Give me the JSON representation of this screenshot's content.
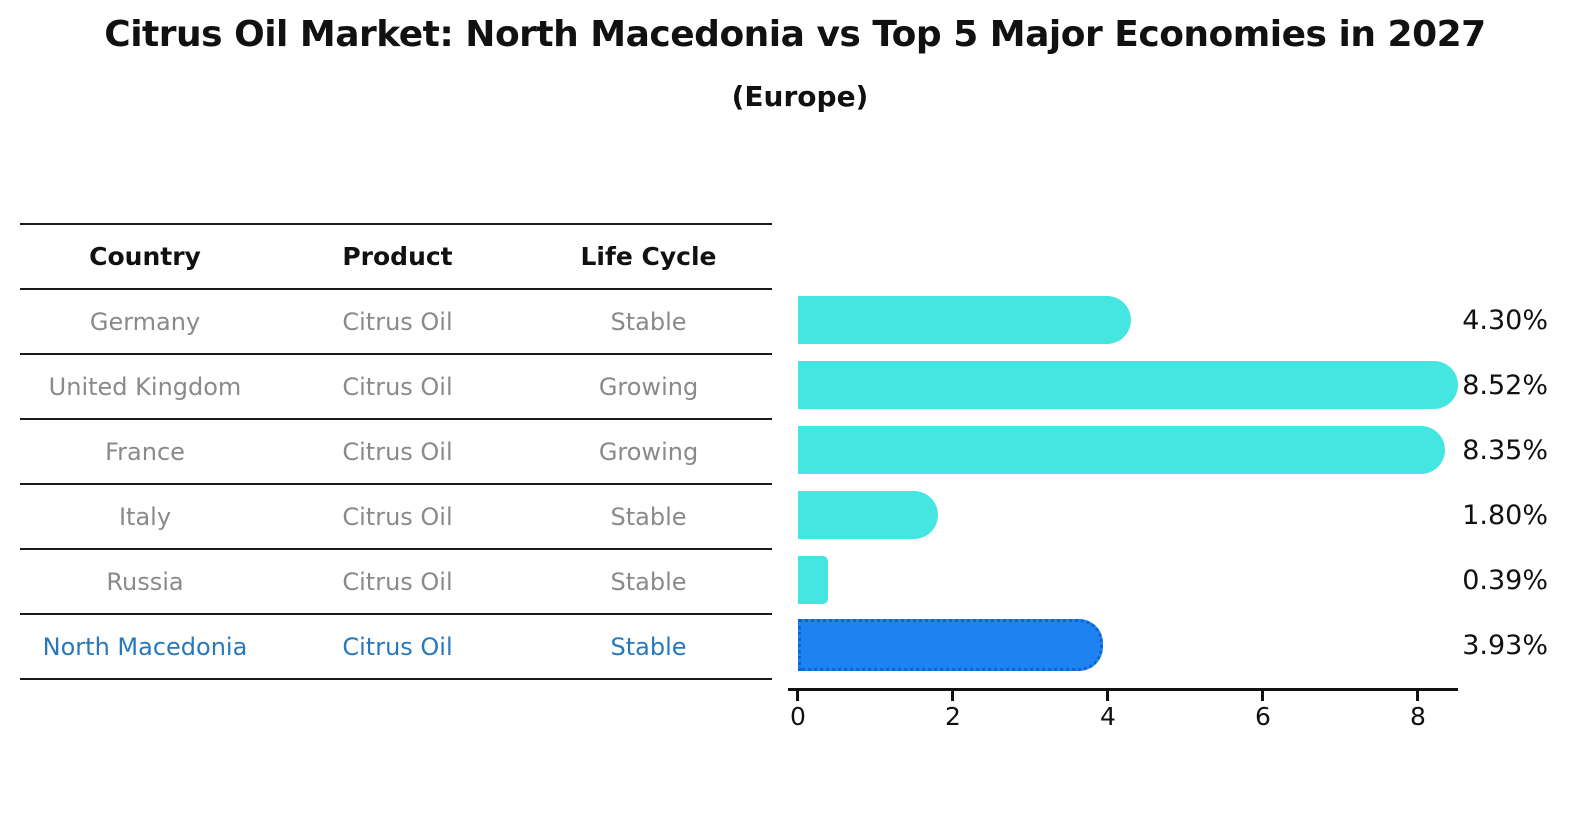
{
  "title": "Citrus Oil Market: North Macedonia vs Top 5 Major Economies in 2027",
  "subtitle": "(Europe)",
  "table": {
    "headers": [
      "Country",
      "Product",
      "Life Cycle"
    ],
    "rows": [
      {
        "country": "Germany",
        "product": "Citrus Oil",
        "life_cycle": "Stable",
        "highlight": false
      },
      {
        "country": "United Kingdom",
        "product": "Citrus Oil",
        "life_cycle": "Growing",
        "highlight": false
      },
      {
        "country": "France",
        "product": "Citrus Oil",
        "life_cycle": "Growing",
        "highlight": false
      },
      {
        "country": "Italy",
        "product": "Citrus Oil",
        "life_cycle": "Stable",
        "highlight": false
      },
      {
        "country": "Russia",
        "product": "Citrus Oil",
        "life_cycle": "Stable",
        "highlight": false
      },
      {
        "country": "North Macedonia",
        "product": "Citrus Oil",
        "life_cycle": "Stable",
        "highlight": true
      }
    ]
  },
  "chart_data": {
    "type": "bar",
    "orientation": "horizontal",
    "title": "Citrus Oil Market: North Macedonia vs Top 5 Major Economies in 2027 (Europe)",
    "categories": [
      "Germany",
      "United Kingdom",
      "France",
      "Italy",
      "Russia",
      "North Macedonia"
    ],
    "values": [
      4.3,
      8.52,
      8.35,
      1.8,
      0.39,
      3.93
    ],
    "value_labels": [
      "4.30%",
      "8.52%",
      "8.35%",
      "1.80%",
      "0.39%",
      "3.93%"
    ],
    "xlim": [
      0,
      8.7
    ],
    "xticks": [
      "0",
      "2",
      "4",
      "6",
      "8"
    ],
    "grid": false,
    "legend": false,
    "highlight_index": 5,
    "bar_color": "#45e6e1",
    "highlight_color": "#1e82f0",
    "highlight_edge_color": "#0c63d6",
    "label_color": "#111111",
    "muted_text_color": "#8a8a8a",
    "highlight_text_color": "#2878be"
  }
}
